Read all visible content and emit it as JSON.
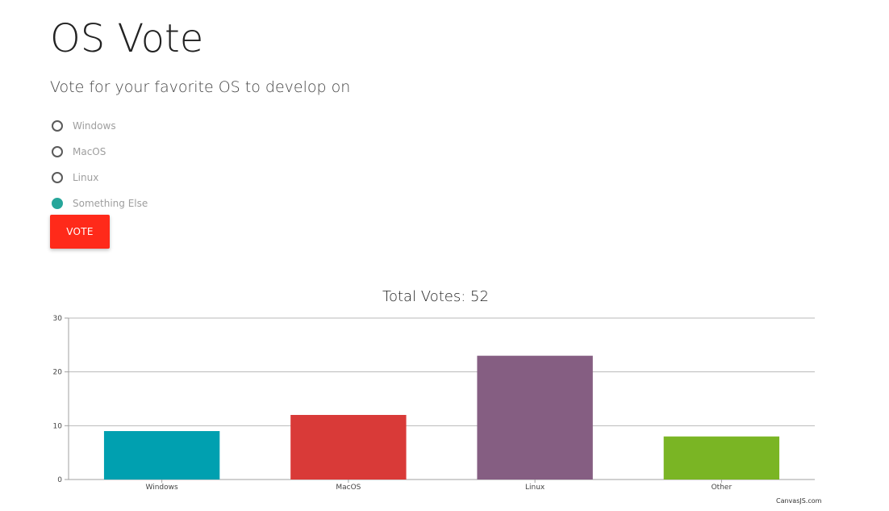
{
  "page": {
    "title": "OS Vote",
    "subtitle": "Vote for your favorite OS to develop on"
  },
  "form": {
    "options": [
      {
        "label": "Windows",
        "checked": false
      },
      {
        "label": "MacOS",
        "checked": false
      },
      {
        "label": "Linux",
        "checked": false
      },
      {
        "label": "Something Else",
        "checked": true
      }
    ],
    "vote_label": "VOTE"
  },
  "colors": {
    "accent_radio": "#26a69a",
    "vote_button": "#ff2a1a"
  },
  "chart_data": {
    "type": "bar",
    "title": "Total Votes: 52",
    "categories": [
      "Windows",
      "MacOS",
      "Linux",
      "Other"
    ],
    "values": [
      9,
      12,
      23,
      8
    ],
    "colors": [
      "#00a0b0",
      "#d93a38",
      "#855e82",
      "#7ab524"
    ],
    "ylim": [
      0,
      30
    ],
    "yticks": [
      0,
      10,
      20,
      30
    ],
    "grid": true,
    "xlabel": "",
    "ylabel": ""
  },
  "credit": "CanvasJS.com"
}
